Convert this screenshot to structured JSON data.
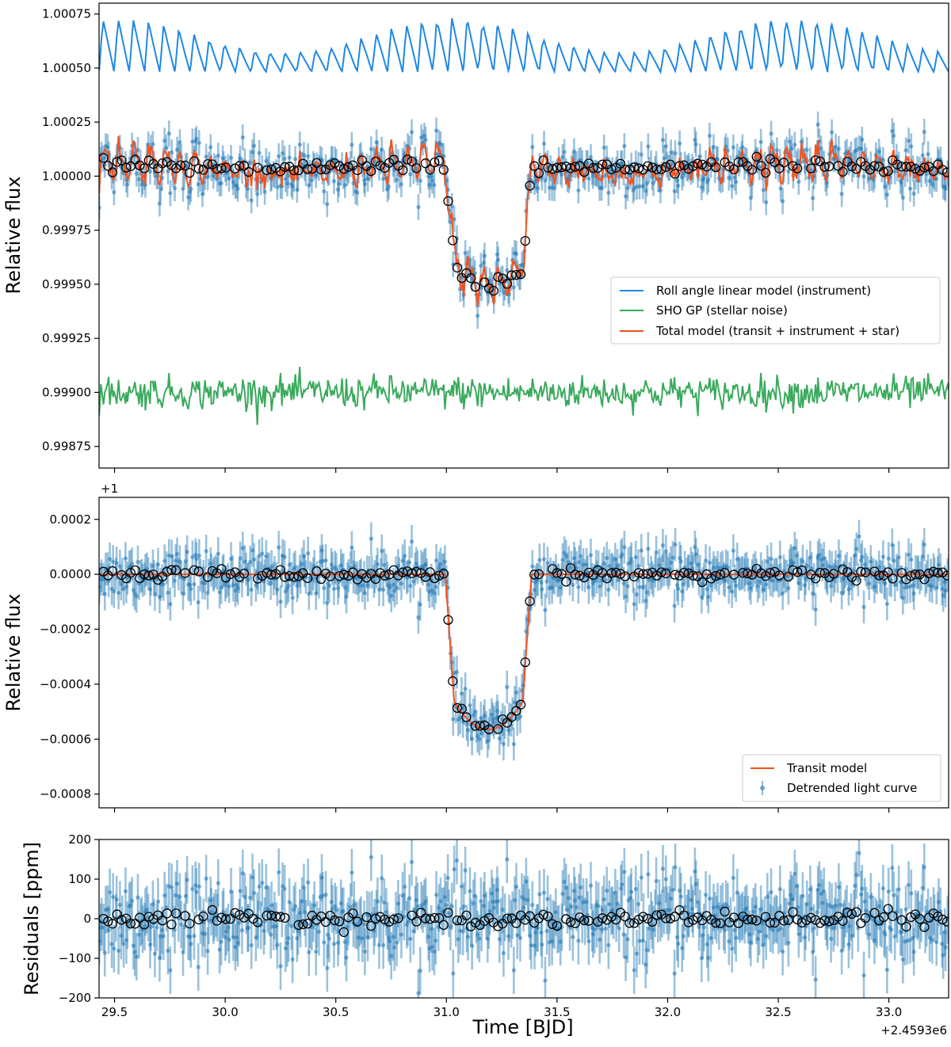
{
  "chart_data": [
    {
      "id": "top",
      "type": "line",
      "xlim": [
        29.43,
        33.27
      ],
      "ylim": [
        0.99865,
        1.0008
      ],
      "ylabel": "Relative flux",
      "yticks": [
        0.99875,
        0.999,
        0.99925,
        0.9995,
        0.99975,
        1.0,
        1.00025,
        1.0005,
        1.00075
      ],
      "ytick_labels": [
        "0.99875",
        "0.99900",
        "0.99925",
        "0.99950",
        "0.99975",
        "1.00000",
        "1.00025",
        "1.00050",
        "1.00075"
      ],
      "xticks": [
        29.5,
        30.0,
        30.5,
        31.0,
        31.5,
        32.0,
        32.5,
        33.0
      ],
      "legend_position": "center-right",
      "legend": [
        {
          "label": "Roll angle linear model (instrument)",
          "color": "#1f88e5"
        },
        {
          "label": "SHO GP (stellar noise)",
          "color": "#3aaa5c"
        },
        {
          "label": "Total model (transit + instrument + star)",
          "color": "#f4511e"
        }
      ],
      "series": [
        {
          "name": "Roll angle linear model (instrument)",
          "color": "#1f88e5",
          "kind": "sawtooth",
          "baseline": 1.0005,
          "amplitude_min": 1.00047,
          "amplitude_max": 1.00079,
          "period_days": 0.0686
        },
        {
          "name": "SHO GP (stellar noise)",
          "color": "#3aaa5c",
          "kind": "noise",
          "mean": 0.999,
          "range": [
            0.9988,
            0.99919
          ]
        },
        {
          "name": "Total model (transit + instrument + star)",
          "color": "#f4511e",
          "kind": "model",
          "out_of_transit": 1.00005,
          "in_transit_min": 0.9993
        },
        {
          "name": "Data",
          "color": "#1f77b4",
          "kind": "errorbar-points",
          "error": 6e-05
        },
        {
          "name": "Binned data",
          "color": "#000000",
          "kind": "open-circles"
        }
      ]
    },
    {
      "id": "middle",
      "type": "line",
      "xlim": [
        29.43,
        33.27
      ],
      "ylim": [
        -0.00085,
        0.00028
      ],
      "ylabel": "Relative flux",
      "offset_text": "+1",
      "yticks": [
        -0.0008,
        -0.0006,
        -0.0004,
        -0.0002,
        0.0,
        0.0002
      ],
      "ytick_labels": [
        "−0.0008",
        "−0.0006",
        "−0.0004",
        "−0.0002",
        "0.0000",
        "0.0002"
      ],
      "xticks": [
        29.5,
        30.0,
        30.5,
        31.0,
        31.5,
        32.0,
        32.5,
        33.0
      ],
      "legend_position": "lower-right",
      "legend": [
        {
          "label": "Transit model",
          "color": "#f4511e"
        },
        {
          "label": "Detrended light curve",
          "color": "#1f77b4"
        }
      ],
      "transit": {
        "t_start": 30.995,
        "t_end": 31.385,
        "ingress_days": 0.04,
        "depth": -0.000565
      },
      "series": [
        {
          "name": "Transit model",
          "color": "#f4511e",
          "kind": "transit"
        },
        {
          "name": "Detrended light curve",
          "color": "#1f77b4",
          "kind": "errorbar-points",
          "error": 6e-05
        },
        {
          "name": "Binned data",
          "color": "#000000",
          "kind": "open-circles"
        }
      ]
    },
    {
      "id": "bottom",
      "type": "scatter",
      "xlim": [
        29.43,
        33.27
      ],
      "ylim": [
        -200,
        200
      ],
      "ylabel": "Residuals [ppm]",
      "xlabel": "Time [BJD]",
      "offset_text": "+2.4593e6",
      "yticks": [
        -200,
        -100,
        0,
        100,
        200
      ],
      "ytick_labels": [
        "−200",
        "−100",
        "0",
        "100",
        "200"
      ],
      "xticks": [
        29.5,
        30.0,
        30.5,
        31.0,
        31.5,
        32.0,
        32.5,
        33.0
      ],
      "xtick_labels": [
        "29.5",
        "30.0",
        "30.5",
        "31.0",
        "31.5",
        "32.0",
        "32.5",
        "33.0"
      ],
      "series": [
        {
          "name": "Residuals",
          "color": "#1f77b4",
          "kind": "errorbar-points",
          "error": 60
        },
        {
          "name": "Binned residuals",
          "color": "#000000",
          "kind": "open-circles"
        }
      ]
    }
  ]
}
